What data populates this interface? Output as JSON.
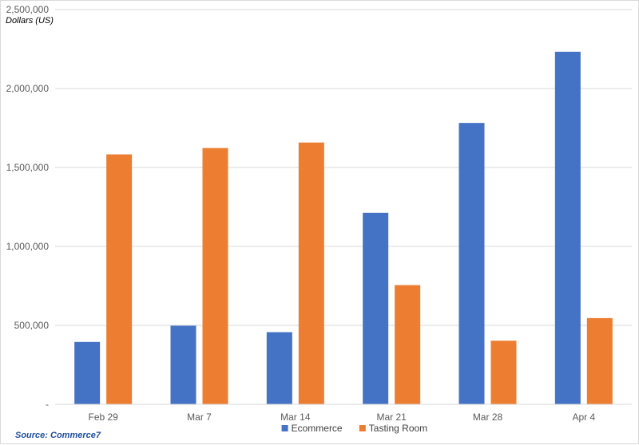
{
  "chart_data": {
    "type": "bar",
    "title": "",
    "xlabel": "",
    "ylabel": "Dollars (US)",
    "source": "Source: Commerce7",
    "categories": [
      "Feb 29",
      "Mar 7",
      "Mar 14",
      "Mar 21",
      "Mar 28",
      "Apr 4"
    ],
    "series": [
      {
        "name": "Ecommerce",
        "color": "#4472c4",
        "values": [
          395000,
          498000,
          457000,
          1213000,
          1782000,
          2233000
        ]
      },
      {
        "name": "Tasting Room",
        "color": "#ed7d31",
        "values": [
          1583000,
          1623000,
          1658000,
          755000,
          403000,
          546000
        ]
      }
    ],
    "ylim": [
      0,
      2500000
    ],
    "yticks": [
      0,
      500000,
      1000000,
      1500000,
      2000000,
      2500000
    ],
    "ytick_labels": [
      "-",
      "500,000",
      "1,000,000",
      "1,500,000",
      "2,000,000",
      "2,500,000"
    ],
    "grid": true,
    "gridline_color": "#d9d9d9",
    "legend_position": "bottom"
  }
}
